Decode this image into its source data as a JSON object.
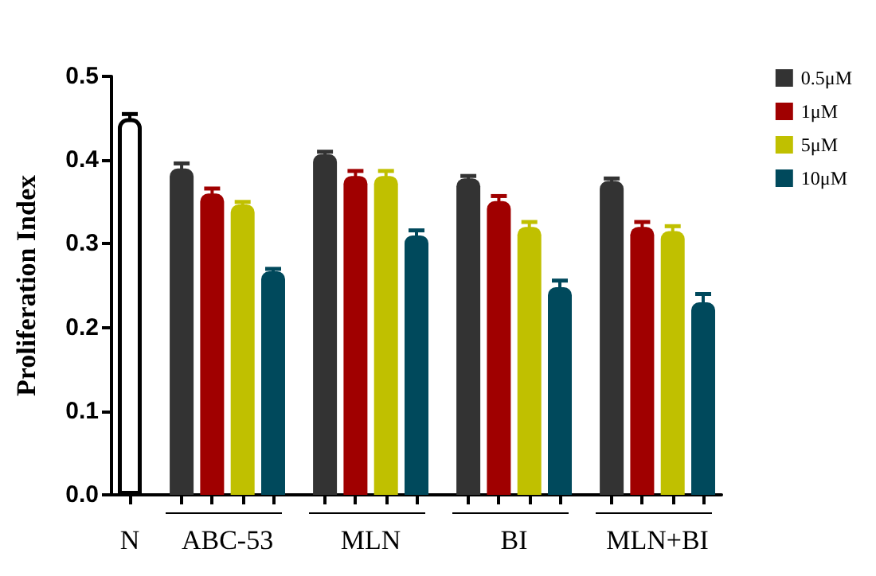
{
  "chart_data": {
    "type": "bar",
    "ylabel": "Proliferation Index",
    "categories": [
      "N",
      "ABC-53",
      "MLN",
      "BI",
      "MLN+BI"
    ],
    "series": [
      {
        "color": "#ffffff",
        "values": [
          0.45,
          null,
          null,
          null,
          null
        ],
        "errors": [
          0.005,
          null,
          null,
          null,
          null
        ]
      },
      {
        "name": "0.5μM",
        "color": "#333333",
        "values": [
          null,
          0.39,
          0.407,
          0.378,
          0.375
        ],
        "errors": [
          null,
          0.006,
          0.003,
          0.003,
          0.003
        ]
      },
      {
        "name": "1μM",
        "color": "#a00000",
        "values": [
          null,
          0.36,
          0.381,
          0.351,
          0.32
        ],
        "errors": [
          null,
          0.006,
          0.006,
          0.006,
          0.006
        ]
      },
      {
        "name": "5μM",
        "color": "#c0c000",
        "values": [
          null,
          0.347,
          0.381,
          0.32,
          0.315
        ],
        "errors": [
          null,
          0.003,
          0.006,
          0.006,
          0.006
        ]
      },
      {
        "name": "10μM",
        "color": "#00495c",
        "values": [
          null,
          0.267,
          0.31,
          0.248,
          0.23
        ],
        "errors": [
          null,
          0.003,
          0.006,
          0.008,
          0.01
        ]
      }
    ],
    "ylim": [
      0,
      0.5
    ],
    "yticks": [
      {
        "value": 0,
        "label": "0.0"
      },
      {
        "value": 0.1,
        "label": "0.1"
      },
      {
        "value": 0.2,
        "label": "0.2"
      },
      {
        "value": 0.3,
        "label": "0.3"
      },
      {
        "value": 0.4,
        "label": "0.4"
      },
      {
        "value": 0.5,
        "label": "0.5"
      }
    ],
    "grid": false,
    "legend": "top right"
  }
}
